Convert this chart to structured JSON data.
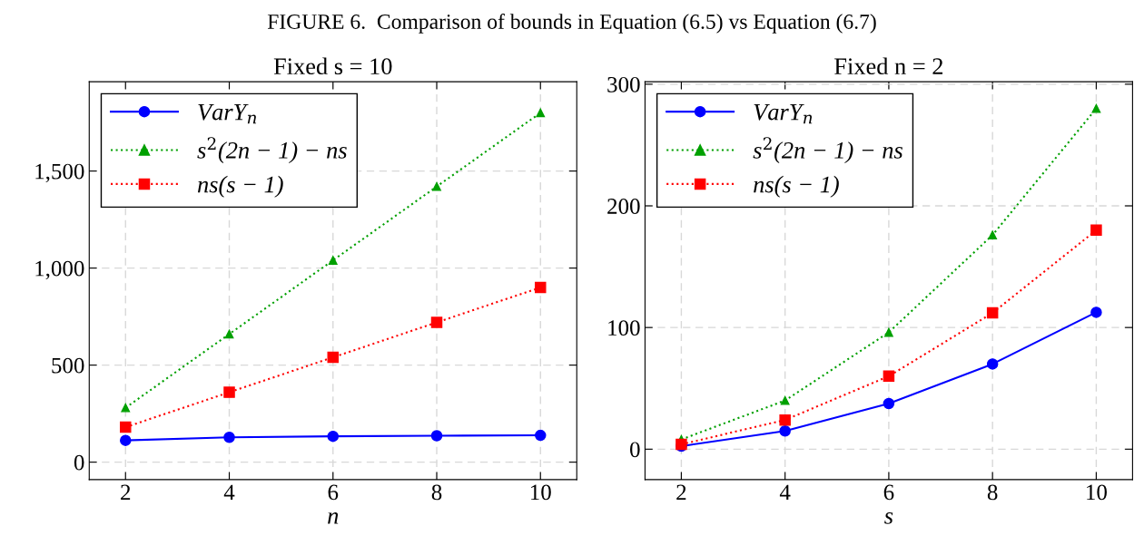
{
  "chart_data": [
    {
      "type": "line",
      "title": "Fixed s = 10",
      "annotations": [
        "FIGURE 6.  Comparison of bounds in Equation (6.5) vs Equation (6.7)"
      ],
      "xlabel": "n",
      "x": [
        2,
        4,
        6,
        8,
        10
      ],
      "xlim": [
        1.3,
        10.7
      ],
      "xticks": [
        2,
        4,
        6,
        8,
        10
      ],
      "ylim": [
        -90,
        1960
      ],
      "yticks": [
        0,
        500,
        {
          "value": 1000,
          "label": "1,000"
        },
        {
          "value": 1500,
          "label": "1,500"
        }
      ],
      "grid": true,
      "legend": "top left",
      "series": [
        {
          "name": "VarY$_{n}$",
          "color": "#0000ff",
          "values": [
            112,
            128,
            133,
            136,
            138
          ],
          "marker": "circle",
          "line_style": "solid"
        },
        {
          "name": "s$^{2}$(2n − 1) − ns",
          "color": "#00a000",
          "values": [
            280,
            660,
            1040,
            1420,
            1800
          ],
          "marker": "triangle",
          "line_style": "dotted"
        },
        {
          "name": "ns(s − 1)",
          "color": "#ff0000",
          "values": [
            180,
            360,
            540,
            720,
            900
          ],
          "marker": "square",
          "line_style": "dotted"
        }
      ]
    },
    {
      "type": "line",
      "title": "Fixed n = 2",
      "xlabel": "s",
      "x": [
        2,
        4,
        6,
        8,
        10
      ],
      "xlim": [
        1.3,
        10.7
      ],
      "xticks": [
        2,
        4,
        6,
        8,
        10
      ],
      "ylim": [
        -25,
        302
      ],
      "yticks": [
        0,
        100,
        200,
        300
      ],
      "grid": true,
      "legend": "top left",
      "series": [
        {
          "name": "VarY$_{n}$",
          "color": "#0000ff",
          "values": [
            2.5,
            15,
            37.5,
            70,
            112.5
          ],
          "marker": "circle",
          "line_style": "solid"
        },
        {
          "name": "s$^{2}$(2n − 1) − ns",
          "color": "#00a000",
          "values": [
            8,
            40,
            96,
            176,
            280
          ],
          "marker": "triangle",
          "line_style": "dotted"
        },
        {
          "name": "ns(s − 1)",
          "color": "#ff0000",
          "values": [
            4,
            24,
            60,
            112,
            180
          ],
          "marker": "square",
          "line_style": "dotted"
        }
      ]
    }
  ]
}
